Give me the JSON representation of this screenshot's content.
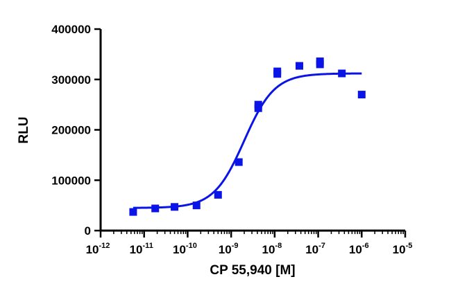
{
  "chart_data": {
    "type": "scatter",
    "title": "",
    "xlabel": "CP 55,940 [M]",
    "ylabel": "RLU",
    "x_scale": "log10",
    "xlim": [
      1e-12,
      1e-05
    ],
    "ylim": [
      0,
      400000
    ],
    "x_ticks": [
      {
        "value": 1e-12,
        "base": "10",
        "exp": "-12"
      },
      {
        "value": 1e-11,
        "base": "10",
        "exp": "-11"
      },
      {
        "value": 1e-10,
        "base": "10",
        "exp": "-10"
      },
      {
        "value": 1e-09,
        "base": "10",
        "exp": "-9"
      },
      {
        "value": 1e-08,
        "base": "10",
        "exp": "-8"
      },
      {
        "value": 1e-07,
        "base": "10",
        "exp": "-7"
      },
      {
        "value": 1e-06,
        "base": "10",
        "exp": "-6"
      },
      {
        "value": 1e-05,
        "base": "10",
        "exp": "-5"
      }
    ],
    "y_ticks": [
      {
        "value": 0,
        "label": "0"
      },
      {
        "value": 100000,
        "label": "100000"
      },
      {
        "value": 200000,
        "label": "200000"
      },
      {
        "value": 300000,
        "label": "300000"
      },
      {
        "value": 400000,
        "label": "400000"
      }
    ],
    "grid": false,
    "color": "#0a14e6",
    "points": [
      {
        "x": 5.6e-12,
        "y": 37000
      },
      {
        "x": 1.8e-11,
        "y": 44000
      },
      {
        "x": 5e-11,
        "y": 47000
      },
      {
        "x": 1.6e-10,
        "y": 50000
      },
      {
        "x": 5e-10,
        "y": 71000
      },
      {
        "x": 1.5e-09,
        "y": 136000
      },
      {
        "x": 4.2e-09,
        "y": 243000
      },
      {
        "x": 4.2e-09,
        "y": 250000
      },
      {
        "x": 1.15e-08,
        "y": 311000
      },
      {
        "x": 1.15e-08,
        "y": 316000
      },
      {
        "x": 3.7e-08,
        "y": 327000
      },
      {
        "x": 1.1e-07,
        "y": 330000
      },
      {
        "x": 1.1e-07,
        "y": 336000
      },
      {
        "x": 3.5e-07,
        "y": 312000
      },
      {
        "x": 1e-06,
        "y": 270000
      }
    ],
    "fit": {
      "model": "four-parameter logistic",
      "bottom": 45000,
      "top": 312000,
      "logEC50": -8.7,
      "hill": 1.25,
      "x_range": [
        5.6e-12,
        1e-06
      ]
    }
  }
}
